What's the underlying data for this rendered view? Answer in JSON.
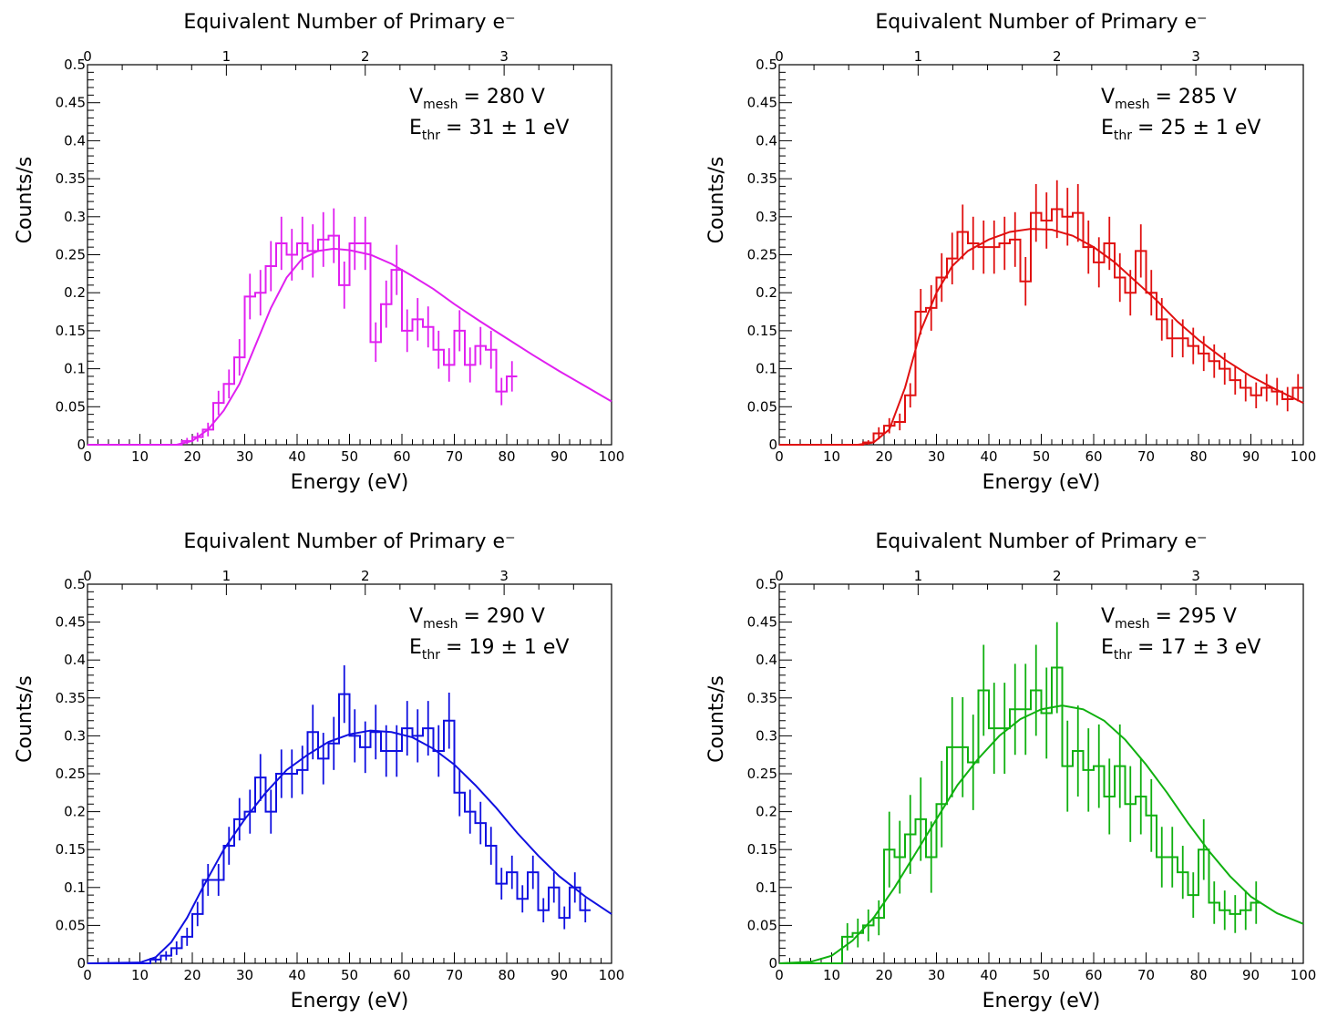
{
  "chart_data": [
    {
      "type": "histogram",
      "color": "#e020f0",
      "xlabel": "Energy (eV)",
      "ylabel": "Counts/s",
      "top_xlabel": "Equivalent Number of Primary e⁻",
      "top_ticks": [
        "0",
        "1",
        "2",
        "3"
      ],
      "top_tick_positions_ev": [
        0,
        26.5,
        53,
        79.5
      ],
      "xlim": [
        0,
        100
      ],
      "ylim": [
        0,
        0.5
      ],
      "xticks": [
        "0",
        "10",
        "20",
        "30",
        "40",
        "50",
        "60",
        "70",
        "80",
        "90",
        "100"
      ],
      "yticks": [
        "0",
        "0.05",
        "0.1",
        "0.15",
        "0.2",
        "0.25",
        "0.3",
        "0.35",
        "0.4",
        "0.45",
        "0.5"
      ],
      "annotation": {
        "v_main": "V",
        "v_sub": "mesh",
        "v_value": "= 280 V",
        "e_main": "E",
        "e_sub": "thr",
        "e_value": "= 31 ± 1 eV"
      },
      "bin_edges_start": 18,
      "bin_width": 2,
      "bin_values": [
        0.005,
        0.01,
        0.02,
        0.055,
        0.08,
        0.115,
        0.195,
        0.2,
        0.235,
        0.265,
        0.25,
        0.265,
        0.255,
        0.27,
        0.275,
        0.21,
        0.265,
        0.265,
        0.135,
        0.185,
        0.23,
        0.15,
        0.165,
        0.155,
        0.125,
        0.105,
        0.15,
        0.105,
        0.13,
        0.125,
        0.07,
        0.09
      ],
      "bin_errors": [
        0.004,
        0.006,
        0.009,
        0.016,
        0.019,
        0.024,
        0.03,
        0.03,
        0.033,
        0.035,
        0.034,
        0.035,
        0.035,
        0.036,
        0.036,
        0.031,
        0.035,
        0.035,
        0.026,
        0.031,
        0.033,
        0.028,
        0.028,
        0.027,
        0.025,
        0.022,
        0.027,
        0.023,
        0.025,
        0.025,
        0.018,
        0.02
      ],
      "fit_curve": {
        "x": [
          0,
          17,
          20,
          23,
          26,
          29,
          32,
          35,
          38,
          41,
          44,
          47,
          50,
          54,
          58,
          62,
          66,
          70,
          75,
          80,
          85,
          90,
          95,
          100
        ],
        "y": [
          0,
          0,
          0.005,
          0.02,
          0.045,
          0.08,
          0.13,
          0.18,
          0.22,
          0.245,
          0.255,
          0.258,
          0.256,
          0.25,
          0.238,
          0.222,
          0.205,
          0.185,
          0.162,
          0.14,
          0.118,
          0.097,
          0.077,
          0.057
        ]
      }
    },
    {
      "type": "histogram",
      "color": "#e01010",
      "xlabel": "Energy (eV)",
      "ylabel": "Counts/s",
      "top_xlabel": "Equivalent Number of Primary e⁻",
      "top_ticks": [
        "0",
        "1",
        "2",
        "3"
      ],
      "top_tick_positions_ev": [
        0,
        26.5,
        53,
        79.5
      ],
      "xlim": [
        0,
        100
      ],
      "ylim": [
        0,
        0.5
      ],
      "xticks": [
        "0",
        "10",
        "20",
        "30",
        "40",
        "50",
        "60",
        "70",
        "80",
        "90",
        "100"
      ],
      "yticks": [
        "0",
        "0.05",
        "0.1",
        "0.15",
        "0.2",
        "0.25",
        "0.3",
        "0.35",
        "0.4",
        "0.45",
        "0.5"
      ],
      "annotation": {
        "v_main": "V",
        "v_sub": "mesh",
        "v_value": "= 285 V",
        "e_main": "E",
        "e_sub": "thr",
        "e_value": "= 25 ± 1 eV"
      },
      "bin_edges_start": 16,
      "bin_width": 2,
      "bin_values": [
        0.003,
        0.015,
        0.025,
        0.03,
        0.065,
        0.175,
        0.18,
        0.22,
        0.245,
        0.28,
        0.265,
        0.26,
        0.26,
        0.265,
        0.27,
        0.215,
        0.305,
        0.295,
        0.31,
        0.3,
        0.305,
        0.26,
        0.24,
        0.265,
        0.22,
        0.2,
        0.255,
        0.2,
        0.165,
        0.14,
        0.14,
        0.13,
        0.12,
        0.11,
        0.1,
        0.085,
        0.075,
        0.065,
        0.075,
        0.07,
        0.06,
        0.075
      ],
      "bin_errors": [
        0.003,
        0.008,
        0.01,
        0.011,
        0.016,
        0.03,
        0.03,
        0.032,
        0.034,
        0.036,
        0.035,
        0.035,
        0.035,
        0.035,
        0.036,
        0.032,
        0.038,
        0.037,
        0.038,
        0.038,
        0.038,
        0.035,
        0.033,
        0.035,
        0.032,
        0.03,
        0.035,
        0.03,
        0.028,
        0.025,
        0.025,
        0.024,
        0.023,
        0.022,
        0.021,
        0.019,
        0.018,
        0.017,
        0.018,
        0.018,
        0.016,
        0.018
      ],
      "fit_curve": {
        "x": [
          0,
          15,
          18,
          21,
          24,
          27,
          30,
          33,
          36,
          40,
          44,
          48,
          52,
          56,
          60,
          64,
          68,
          72,
          76,
          80,
          85,
          90,
          95,
          100
        ],
        "y": [
          0,
          0,
          0.003,
          0.02,
          0.075,
          0.15,
          0.2,
          0.235,
          0.255,
          0.27,
          0.28,
          0.284,
          0.283,
          0.275,
          0.26,
          0.24,
          0.215,
          0.19,
          0.162,
          0.138,
          0.112,
          0.09,
          0.072,
          0.055
        ]
      }
    },
    {
      "type": "histogram",
      "color": "#1010e0",
      "xlabel": "Energy (eV)",
      "ylabel": "Counts/s",
      "top_xlabel": "Equivalent Number of Primary e⁻",
      "top_ticks": [
        "0",
        "1",
        "2",
        "3"
      ],
      "top_tick_positions_ev": [
        0,
        26.5,
        53,
        79.5
      ],
      "xlim": [
        0,
        100
      ],
      "ylim": [
        0,
        0.5
      ],
      "xticks": [
        "0",
        "10",
        "20",
        "30",
        "40",
        "50",
        "60",
        "70",
        "80",
        "90",
        "100"
      ],
      "yticks": [
        "0",
        "0.05",
        "0.1",
        "0.15",
        "0.2",
        "0.25",
        "0.3",
        "0.35",
        "0.4",
        "0.45",
        "0.5"
      ],
      "annotation": {
        "v_main": "V",
        "v_sub": "mesh",
        "v_value": "= 290 V",
        "e_main": "E",
        "e_sub": "thr",
        "e_value": "= 19 ± 1 eV"
      },
      "bin_edges_start": 12,
      "bin_width": 2,
      "bin_values": [
        0.005,
        0.01,
        0.02,
        0.035,
        0.065,
        0.11,
        0.11,
        0.155,
        0.19,
        0.2,
        0.245,
        0.2,
        0.25,
        0.25,
        0.255,
        0.305,
        0.27,
        0.29,
        0.355,
        0.3,
        0.285,
        0.305,
        0.28,
        0.28,
        0.31,
        0.3,
        0.31,
        0.28,
        0.32,
        0.225,
        0.2,
        0.185,
        0.155,
        0.105,
        0.12,
        0.085,
        0.12,
        0.07,
        0.1,
        0.06,
        0.1,
        0.07
      ],
      "bin_errors": [
        0.004,
        0.006,
        0.009,
        0.012,
        0.016,
        0.021,
        0.021,
        0.025,
        0.028,
        0.029,
        0.031,
        0.029,
        0.032,
        0.032,
        0.032,
        0.036,
        0.034,
        0.035,
        0.038,
        0.035,
        0.034,
        0.036,
        0.034,
        0.034,
        0.036,
        0.035,
        0.036,
        0.034,
        0.037,
        0.031,
        0.029,
        0.028,
        0.025,
        0.021,
        0.022,
        0.018,
        0.022,
        0.016,
        0.02,
        0.015,
        0.02,
        0.016
      ],
      "fit_curve": {
        "x": [
          0,
          10,
          13,
          16,
          19,
          22,
          26,
          30,
          34,
          38,
          42,
          46,
          50,
          54,
          58,
          62,
          66,
          70,
          74,
          78,
          82,
          86,
          90,
          95,
          100
        ],
        "y": [
          0,
          0.001,
          0.008,
          0.028,
          0.06,
          0.1,
          0.15,
          0.19,
          0.225,
          0.255,
          0.275,
          0.292,
          0.302,
          0.307,
          0.305,
          0.298,
          0.283,
          0.262,
          0.235,
          0.205,
          0.172,
          0.142,
          0.115,
          0.088,
          0.065
        ]
      }
    },
    {
      "type": "histogram",
      "color": "#10b010",
      "xlabel": "Energy (eV)",
      "ylabel": "Counts/s",
      "top_xlabel": "Equivalent Number of Primary e⁻",
      "top_ticks": [
        "0",
        "1",
        "2",
        "3"
      ],
      "top_tick_positions_ev": [
        0,
        26.5,
        53,
        79.5
      ],
      "xlim": [
        0,
        100
      ],
      "ylim": [
        0,
        0.5
      ],
      "xticks": [
        "0",
        "10",
        "20",
        "30",
        "40",
        "50",
        "60",
        "70",
        "80",
        "90",
        "100"
      ],
      "yticks": [
        "0",
        "0.05",
        "0.1",
        "0.15",
        "0.2",
        "0.25",
        "0.3",
        "0.35",
        "0.4",
        "0.45",
        "0.5"
      ],
      "annotation": {
        "v_main": "V",
        "v_sub": "mesh",
        "v_value": "= 295 V",
        "e_main": "E",
        "e_sub": "thr",
        "e_value": "= 17 ± 3 eV"
      },
      "bin_edges_start": 12,
      "bin_width": 2,
      "bin_values": [
        0.035,
        0.04,
        0.05,
        0.06,
        0.15,
        0.14,
        0.17,
        0.19,
        0.14,
        0.21,
        0.285,
        0.285,
        0.265,
        0.36,
        0.31,
        0.31,
        0.335,
        0.335,
        0.36,
        0.33,
        0.39,
        0.26,
        0.28,
        0.255,
        0.26,
        0.22,
        0.26,
        0.21,
        0.22,
        0.195,
        0.14,
        0.14,
        0.12,
        0.09,
        0.15,
        0.08,
        0.07,
        0.065,
        0.07,
        0.08
      ],
      "bin_errors": [
        0.018,
        0.019,
        0.021,
        0.023,
        0.05,
        0.048,
        0.052,
        0.055,
        0.047,
        0.057,
        0.066,
        0.066,
        0.063,
        0.06,
        0.06,
        0.06,
        0.06,
        0.06,
        0.06,
        0.06,
        0.06,
        0.06,
        0.06,
        0.055,
        0.055,
        0.05,
        0.055,
        0.05,
        0.05,
        0.048,
        0.04,
        0.04,
        0.035,
        0.03,
        0.04,
        0.028,
        0.026,
        0.025,
        0.026,
        0.028
      ],
      "fit_curve": {
        "x": [
          0,
          6,
          10,
          14,
          18,
          22,
          26,
          30,
          34,
          38,
          42,
          46,
          50,
          54,
          58,
          62,
          66,
          70,
          74,
          78,
          82,
          86,
          90,
          95,
          100
        ],
        "y": [
          0,
          0.002,
          0.01,
          0.03,
          0.06,
          0.1,
          0.145,
          0.19,
          0.235,
          0.27,
          0.3,
          0.322,
          0.335,
          0.34,
          0.335,
          0.32,
          0.295,
          0.262,
          0.225,
          0.185,
          0.148,
          0.115,
          0.088,
          0.066,
          0.052
        ]
      }
    }
  ]
}
